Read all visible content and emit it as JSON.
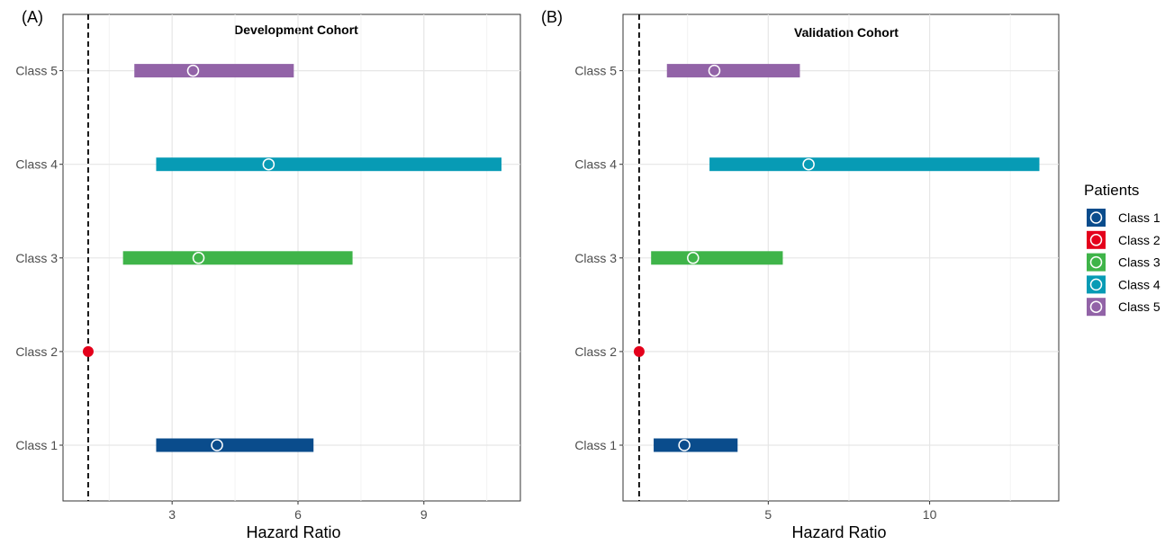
{
  "chart_data": [
    {
      "type": "forest",
      "panel_tag": "(A)",
      "title": "Development Cohort",
      "xlabel": "Hazard Ratio",
      "xlim": [
        0.4,
        11.3
      ],
      "xticks": [
        3,
        6,
        9
      ],
      "reference_line": 1,
      "categories": [
        "Class 1",
        "Class 2",
        "Class 3",
        "Class 4",
        "Class 5"
      ],
      "rows": [
        {
          "category": "Class 1",
          "hr": 4.07,
          "lower": 2.62,
          "upper": 6.37
        },
        {
          "category": "Class 2",
          "hr": 1.0,
          "lower": null,
          "upper": null
        },
        {
          "category": "Class 3",
          "hr": 3.63,
          "lower": 1.83,
          "upper": 7.3
        },
        {
          "category": "Class 4",
          "hr": 5.3,
          "lower": 2.62,
          "upper": 10.85
        },
        {
          "category": "Class 5",
          "hr": 3.5,
          "lower": 2.1,
          "upper": 5.9
        }
      ]
    },
    {
      "type": "forest",
      "panel_tag": "(B)",
      "title": "Validation Cohort",
      "xlabel": "Hazard Ratio",
      "xlim": [
        0.5,
        14.0
      ],
      "xticks": [
        5,
        10
      ],
      "reference_line": 1,
      "categories": [
        "Class 1",
        "Class 2",
        "Class 3",
        "Class 4",
        "Class 5"
      ],
      "rows": [
        {
          "category": "Class 1",
          "hr": 2.4,
          "lower": 1.45,
          "upper": 4.05
        },
        {
          "category": "Class 2",
          "hr": 1.0,
          "lower": null,
          "upper": null
        },
        {
          "category": "Class 3",
          "hr": 2.67,
          "lower": 1.37,
          "upper": 5.45
        },
        {
          "category": "Class 4",
          "hr": 6.25,
          "lower": 3.18,
          "upper": 13.4
        },
        {
          "category": "Class 5",
          "hr": 3.33,
          "lower": 1.86,
          "upper": 5.98
        }
      ]
    }
  ],
  "legend": {
    "title": "Patients",
    "items": [
      {
        "label": "Class 1",
        "color": "#0a4c8c"
      },
      {
        "label": "Class 2",
        "color": "#e4001b"
      },
      {
        "label": "Class 3",
        "color": "#3fb449"
      },
      {
        "label": "Class 4",
        "color": "#079bb5"
      },
      {
        "label": "Class 5",
        "color": "#9263a7"
      }
    ]
  }
}
